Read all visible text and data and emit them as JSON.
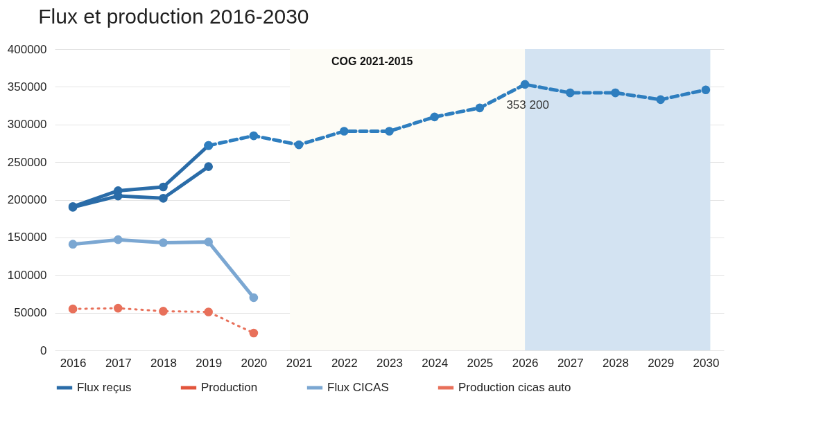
{
  "chart_data": {
    "type": "line",
    "title": "Flux et production 2016-2030",
    "xlim": [
      2015.6,
      2030.4
    ],
    "xticks": [
      2016,
      2017,
      2018,
      2019,
      2020,
      2021,
      2022,
      2023,
      2024,
      2025,
      2026,
      2027,
      2028,
      2029,
      2030
    ],
    "ylim": [
      0,
      400000
    ],
    "yticks": [
      0,
      50000,
      100000,
      150000,
      200000,
      250000,
      300000,
      350000,
      400000
    ],
    "grid": "y",
    "legend": "bottom",
    "marker": "circle",
    "bands": [
      {
        "axis": "x",
        "from": 2020.8,
        "to": 2026,
        "label": "COG 2021-2015",
        "color": "#fdfcf6"
      },
      {
        "axis": "x",
        "from": 2026,
        "to": 2030.1,
        "color": "#d3e3f2"
      }
    ],
    "annotations": [
      {
        "text": "353 200",
        "x": 2026,
        "y": 353200
      }
    ],
    "series": [
      {
        "name": "Flux reçus",
        "color": "#2a6ca8",
        "x": [
          2016,
          2017,
          2018,
          2019
        ],
        "values": [
          191000,
          212000,
          217000,
          272000
        ]
      },
      {
        "name": "Production",
        "color": "#e2553c"
      },
      {
        "name": "Flux CICAS",
        "color": "#7ba7d2",
        "x": [
          2016,
          2017,
          2018,
          2019,
          2020
        ],
        "values": [
          141000,
          147000,
          143000,
          144000,
          70000
        ]
      },
      {
        "name": "Production cicas auto",
        "color": "#e8705a",
        "line_style": "dotted",
        "x": [
          2016,
          2017,
          2018,
          2019,
          2020
        ],
        "values": [
          55000,
          56000,
          52000,
          51000,
          23000
        ]
      },
      {
        "color": "#2a6ca8",
        "x": [
          2016,
          2017,
          2018,
          2019
        ],
        "values": [
          190000,
          205000,
          202000,
          244000
        ]
      },
      {
        "color": "#2e7ebf",
        "line_style": "dashed",
        "x": [
          2019,
          2020,
          2021,
          2022,
          2023,
          2024,
          2025,
          2026,
          2027,
          2028,
          2029,
          2030
        ],
        "values": [
          272000,
          285000,
          273000,
          291000,
          291000,
          310000,
          322000,
          353200,
          342000,
          342000,
          333000,
          346000
        ]
      }
    ]
  }
}
